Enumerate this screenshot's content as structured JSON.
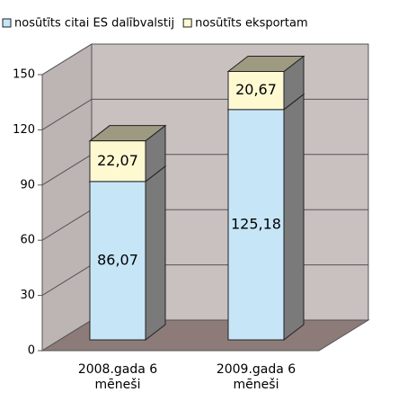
{
  "chart_data": {
    "type": "bar3d_stacked",
    "categories": [
      "2008.gada 6 mēneši",
      "2009.gada 6 mēneši"
    ],
    "series": [
      {
        "name": "nosūtīts citai ES dalībvalstij",
        "color": "#c6e6f8",
        "values": [
          86.07,
          125.18
        ],
        "value_labels": [
          "86,07",
          "125,18"
        ]
      },
      {
        "name": "nosūtīts eksportam",
        "color": "#fff9d2",
        "values": [
          22.07,
          20.67
        ],
        "value_labels": [
          "22,07",
          "20,67"
        ]
      }
    ],
    "ylim": [
      0,
      150
    ],
    "yticks": [
      0,
      30,
      60,
      90,
      120,
      150
    ],
    "grid": true,
    "legend": "top"
  }
}
